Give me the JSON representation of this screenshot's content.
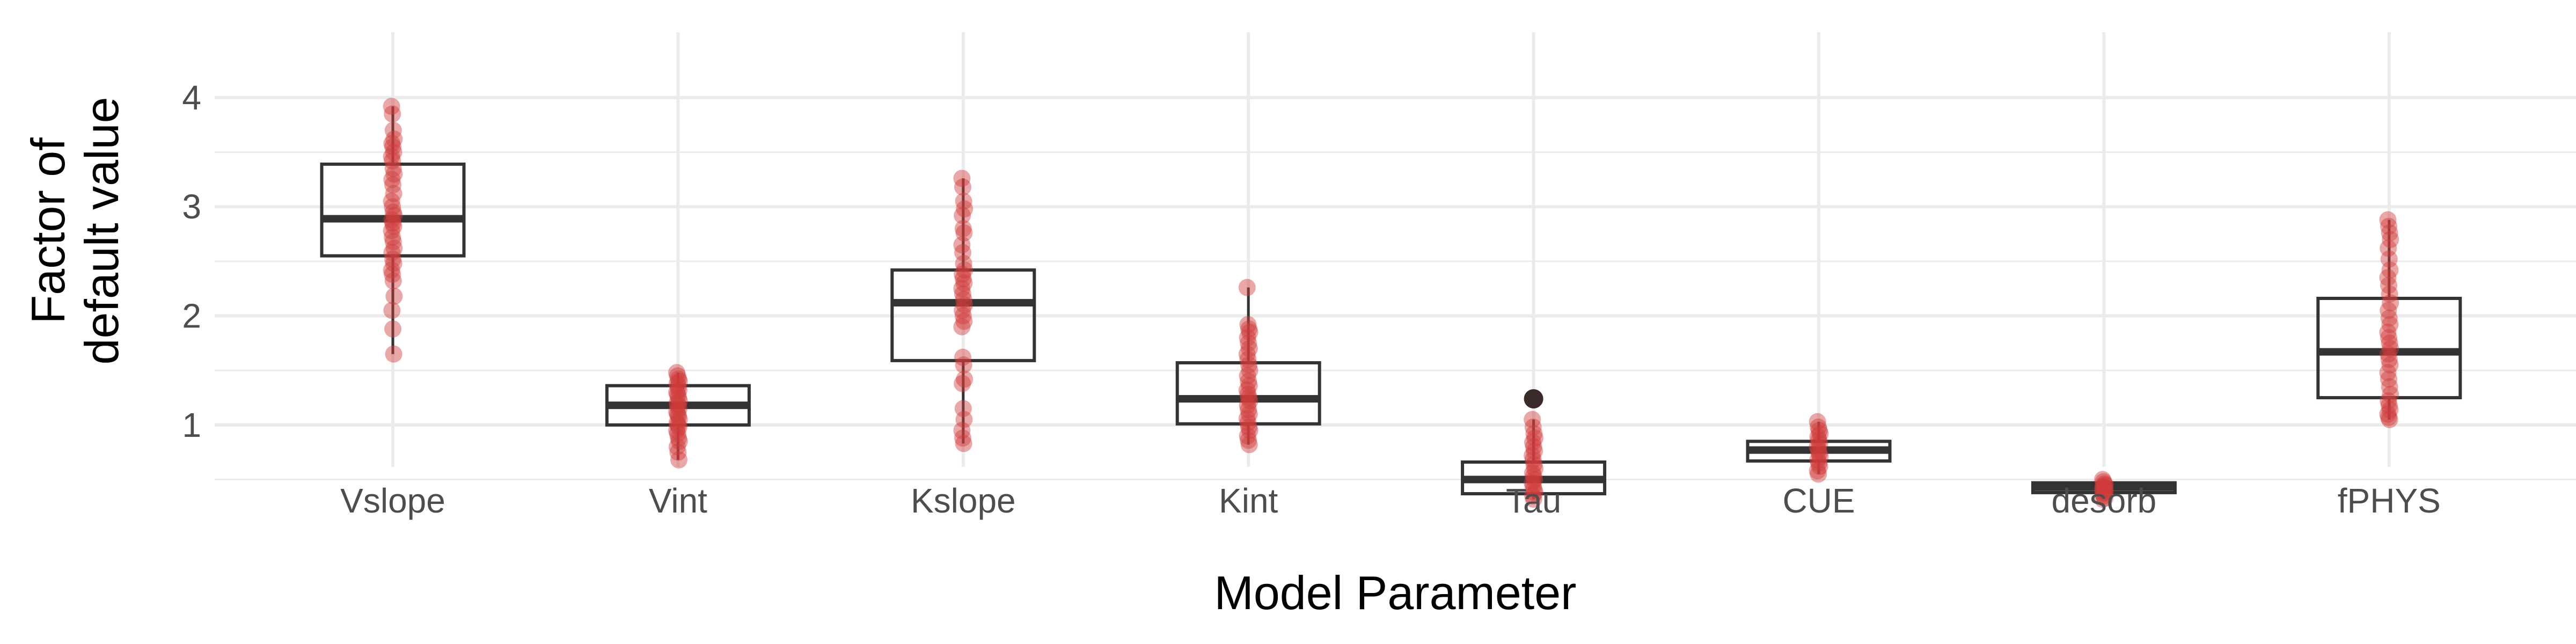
{
  "chart_data": {
    "type": "box",
    "xlabel": "Model Parameter",
    "ylabel": [
      "Factor of",
      "default value"
    ],
    "ylim": [
      0.0,
      4.0
    ],
    "yticks": [
      1,
      2,
      3,
      4
    ],
    "grid": true,
    "colors": {
      "points": "#d13b3b",
      "box_line": "#333333",
      "grid": "#ebebeb"
    },
    "categories": [
      "Vslope",
      "Vint",
      "Kslope",
      "Kint",
      "Tau",
      "CUE",
      "desorb",
      "fPHYS"
    ],
    "boxes": [
      {
        "name": "Vslope",
        "min": 1.65,
        "q1": 2.55,
        "median": 2.89,
        "q3": 3.39,
        "max": 3.92,
        "outliers": []
      },
      {
        "name": "Vint",
        "min": 0.68,
        "q1": 1.0,
        "median": 1.18,
        "q3": 1.36,
        "max": 1.48,
        "outliers": []
      },
      {
        "name": "Kslope",
        "min": 0.83,
        "q1": 1.59,
        "median": 2.12,
        "q3": 2.42,
        "max": 3.26,
        "outliers": []
      },
      {
        "name": "Kint",
        "min": 0.82,
        "q1": 1.01,
        "median": 1.24,
        "q3": 1.57,
        "max": 2.26,
        "outliers": []
      },
      {
        "name": "Tau",
        "min": 0.32,
        "q1": 0.37,
        "median": 0.5,
        "q3": 0.66,
        "max": 1.05,
        "outliers": [
          1.24
        ]
      },
      {
        "name": "CUE",
        "min": 0.55,
        "q1": 0.67,
        "median": 0.77,
        "q3": 0.85,
        "max": 1.03,
        "outliers": []
      },
      {
        "name": "desorb",
        "min": 0.32,
        "q1": 0.38,
        "median": 0.43,
        "q3": 0.47,
        "max": 0.5,
        "outliers": []
      },
      {
        "name": "fPHYS",
        "min": 1.05,
        "q1": 1.25,
        "median": 1.67,
        "q3": 2.16,
        "max": 2.88,
        "outliers": []
      }
    ],
    "points": [
      {
        "name": "Vslope",
        "values": [
          3.92,
          3.85,
          3.7,
          3.62,
          3.58,
          3.55,
          3.5,
          3.46,
          3.42,
          3.35,
          3.3,
          3.25,
          3.2,
          3.12,
          3.05,
          3.0,
          2.95,
          2.92,
          2.88,
          2.85,
          2.82,
          2.78,
          2.72,
          2.68,
          2.62,
          2.58,
          2.52,
          2.48,
          2.42,
          2.38,
          2.32,
          2.18,
          2.05,
          1.88,
          1.65
        ]
      },
      {
        "name": "Vint",
        "values": [
          1.48,
          1.45,
          1.42,
          1.4,
          1.38,
          1.35,
          1.32,
          1.3,
          1.28,
          1.25,
          1.22,
          1.2,
          1.18,
          1.15,
          1.12,
          1.1,
          1.08,
          1.05,
          1.02,
          1.0,
          0.98,
          0.95,
          0.92,
          0.88,
          0.85,
          0.8,
          0.75,
          0.68
        ]
      },
      {
        "name": "Kslope",
        "values": [
          3.26,
          3.18,
          3.05,
          2.98,
          2.92,
          2.8,
          2.76,
          2.65,
          2.58,
          2.48,
          2.42,
          2.38,
          2.34,
          2.3,
          2.25,
          2.2,
          2.15,
          2.1,
          2.05,
          2.0,
          1.95,
          1.9,
          1.62,
          1.55,
          1.42,
          1.38,
          1.15,
          1.05,
          0.95,
          0.88,
          0.83
        ]
      },
      {
        "name": "Kint",
        "values": [
          2.26,
          1.92,
          1.88,
          1.85,
          1.8,
          1.75,
          1.7,
          1.65,
          1.6,
          1.55,
          1.5,
          1.45,
          1.4,
          1.36,
          1.32,
          1.28,
          1.25,
          1.22,
          1.18,
          1.14,
          1.1,
          1.06,
          1.02,
          0.98,
          0.95,
          0.9,
          0.86,
          0.82
        ]
      },
      {
        "name": "Tau",
        "values": [
          1.05,
          0.98,
          0.92,
          0.88,
          0.84,
          0.8,
          0.76,
          0.72,
          0.68,
          0.64,
          0.6,
          0.56,
          0.53,
          0.5,
          0.47,
          0.44,
          0.41,
          0.38,
          0.35,
          0.32
        ]
      },
      {
        "name": "CUE",
        "values": [
          1.03,
          0.98,
          0.95,
          0.92,
          0.89,
          0.86,
          0.83,
          0.8,
          0.77,
          0.74,
          0.71,
          0.68,
          0.65,
          0.62,
          0.58,
          0.55
        ]
      },
      {
        "name": "desorb",
        "values": [
          0.5,
          0.48,
          0.46,
          0.45,
          0.44,
          0.43,
          0.42,
          0.41,
          0.4,
          0.39,
          0.38,
          0.37,
          0.35,
          0.33,
          0.32
        ]
      },
      {
        "name": "fPHYS",
        "values": [
          2.88,
          2.82,
          2.76,
          2.7,
          2.62,
          2.52,
          2.42,
          2.35,
          2.28,
          2.2,
          2.12,
          2.05,
          1.98,
          1.92,
          1.85,
          1.8,
          1.75,
          1.7,
          1.65,
          1.6,
          1.55,
          1.48,
          1.42,
          1.35,
          1.28,
          1.22,
          1.18,
          1.14,
          1.1,
          1.07,
          1.05
        ]
      }
    ]
  }
}
